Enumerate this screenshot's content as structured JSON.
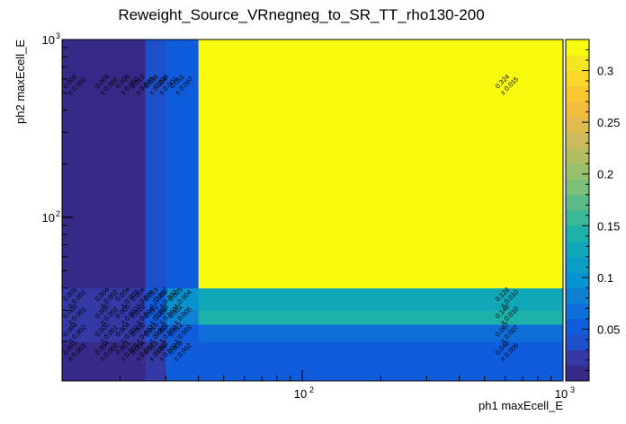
{
  "chart_data": {
    "type": "heatmap",
    "title": "Reweight_Source_VRnegneg_to_SR_TT_rho130-200",
    "xlabel": "ph1 maxEcell_E",
    "ylabel": "ph2 maxEcell_E",
    "x_scale": "log",
    "y_scale": "log",
    "xlim": [
      12,
      1000
    ],
    "ylim": [
      12,
      1000
    ],
    "x_ticks": [
      {
        "v": 100,
        "label": "10",
        "exp": "2"
      },
      {
        "v": 1000,
        "label": "10",
        "exp": "3"
      }
    ],
    "y_ticks": [
      {
        "v": 100,
        "label": "10",
        "exp": "2"
      },
      {
        "v": 1000,
        "label": "10",
        "exp": "3"
      }
    ],
    "x_edges": [
      12,
      25,
      30,
      40,
      1000
    ],
    "y_edges": [
      12,
      20,
      25,
      30,
      40,
      1000
    ],
    "z": [
      [
        0.007,
        0.025,
        0.055,
        0.046
      ],
      [
        0.02,
        0.04,
        0.06,
        0.067
      ],
      [
        0.025,
        0.055,
        0.075,
        0.148
      ],
      [
        0.025,
        0.055,
        0.09,
        0.128
      ],
      [
        0.005,
        0.035,
        0.06,
        0.324
      ]
    ],
    "zlim": [
      0,
      0.33
    ],
    "colorbar_ticks": [
      "0.05",
      "0.1",
      "0.15",
      "0.2",
      "0.25",
      "0.3"
    ],
    "colorbar_tick_values": [
      0.05,
      0.1,
      0.15,
      0.2,
      0.25,
      0.3
    ],
    "palette": [
      "#352a87",
      "#3439a6",
      "#1f4fc9",
      "#0f5cdd",
      "#0f6fd9",
      "#0f81d2",
      "#0793d0",
      "#0a9dc5",
      "#10a8b8",
      "#1eb1a9",
      "#3ab898",
      "#5cbc87",
      "#7cbf78",
      "#98bf6c",
      "#b3bd62",
      "#cbba5b",
      "#e0b94f",
      "#f0bd3e",
      "#f9c82e",
      "#fad628",
      "#f6e61f",
      "#f9fb0e"
    ],
    "labels": [
      {
        "x": 13.2,
        "y": 560,
        "t": "0.005",
        "u": "± 0.002"
      },
      {
        "x": 17.5,
        "y": 560,
        "t": "0.004",
        "u": "± 0.002"
      },
      {
        "x": 21.0,
        "y": 560,
        "t": "0.006",
        "u": "± 0.002"
      },
      {
        "x": 24.0,
        "y": 560,
        "t": "0.013",
        "u": "± 0.005"
      },
      {
        "x": 27.0,
        "y": 560,
        "t": "0.036",
        "u": "± 0.004"
      },
      {
        "x": 29.5,
        "y": 560,
        "t": "0.034",
        "u": "± 0.004"
      },
      {
        "x": 34.0,
        "y": 560,
        "t": "0.051",
        "u": "± 0.007"
      },
      {
        "x": 600,
        "y": 560,
        "t": "0.324",
        "u": "± 0.015"
      },
      {
        "x": 13.2,
        "y": 35.5,
        "t": "0.001",
        "u": "± 0.001"
      },
      {
        "x": 17.5,
        "y": 35.5,
        "t": "0.004",
        "u": "± 0.002"
      },
      {
        "x": 21.0,
        "y": 35.5,
        "t": "0.004",
        "u": "± 0.002"
      },
      {
        "x": 24.0,
        "y": 35.5,
        "t": "0.004",
        "u": "± 0.009"
      },
      {
        "x": 27.0,
        "y": 35.5,
        "t": "0.015",
        "u": "± 0.003"
      },
      {
        "x": 29.5,
        "y": 35.5,
        "t": "0.017",
        "u": "± 0.002"
      },
      {
        "x": 33.5,
        "y": 35.5,
        "t": "0.025",
        "u": "± 0.004"
      },
      {
        "x": 600,
        "y": 35.5,
        "t": "0.128",
        "u": "± 0.010"
      },
      {
        "x": 13.2,
        "y": 28.5,
        "t": "0.003",
        "u": "± 0.001"
      },
      {
        "x": 17.5,
        "y": 28.5,
        "t": "0.005",
        "u": "± 0.002"
      },
      {
        "x": 21.0,
        "y": 28.5,
        "t": "0.006",
        "u": "± 0.002"
      },
      {
        "x": 24.0,
        "y": 28.5,
        "t": "0.010",
        "u": "± 0.004"
      },
      {
        "x": 27.0,
        "y": 28.5,
        "t": "0.022",
        "u": "± 0.003"
      },
      {
        "x": 29.5,
        "y": 28.5,
        "t": "0.013",
        "u": "± 0.003"
      },
      {
        "x": 33.5,
        "y": 28.5,
        "t": "0.032",
        "u": "± 0.005"
      },
      {
        "x": 600,
        "y": 28.5,
        "t": "0.148",
        "u": "± 0.010"
      },
      {
        "x": 13.2,
        "y": 22.5,
        "t": "0.004",
        "u": "± 0.002"
      },
      {
        "x": 17.5,
        "y": 22.5,
        "t": "0.001",
        "u": "± 0.001"
      },
      {
        "x": 21.0,
        "y": 22.5,
        "t": "0.004",
        "u": "± 0.002"
      },
      {
        "x": 24.0,
        "y": 22.5,
        "t": "0.006",
        "u": "± 0.002"
      },
      {
        "x": 27.0,
        "y": 22.5,
        "t": "0.015",
        "u": "± 0.002"
      },
      {
        "x": 29.5,
        "y": 22.5,
        "t": "0.012",
        "u": "± 0.002"
      },
      {
        "x": 33.5,
        "y": 22.5,
        "t": "0.012",
        "u": "± 0.003"
      },
      {
        "x": 600,
        "y": 22.5,
        "t": "0.067",
        "u": "± 0.007"
      },
      {
        "x": 13.2,
        "y": 17.8,
        "t": "0.001",
        "u": "± 0.001"
      },
      {
        "x": 17.5,
        "y": 17.8,
        "t": "0.004",
        "u": "± 0.002"
      },
      {
        "x": 21.0,
        "y": 17.8,
        "t": "0.001",
        "u": "± 0.001"
      },
      {
        "x": 24.0,
        "y": 17.8,
        "t": "0.004",
        "u": "± 0.002"
      },
      {
        "x": 27.0,
        "y": 17.8,
        "t": "0.015",
        "u": "± 0.002"
      },
      {
        "x": 29.5,
        "y": 17.8,
        "t": "0.012",
        "u": "± 0.002"
      },
      {
        "x": 33.5,
        "y": 17.8,
        "t": "0.008",
        "u": "± 0.002"
      },
      {
        "x": 600,
        "y": 17.8,
        "t": "0.046",
        "u": "± 0.006"
      }
    ]
  }
}
